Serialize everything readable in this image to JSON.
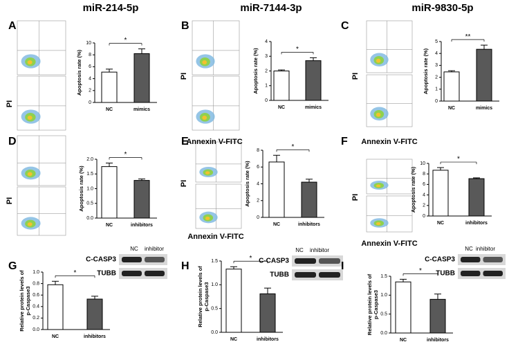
{
  "columns": [
    "miR-214-5p",
    "miR-7144-3p",
    "miR-9830-5p"
  ],
  "flow_x_label": "Annexin V-FITC",
  "flow_y_label": "PI",
  "blots": [
    {
      "lanes": [
        "NC",
        "inhibitor"
      ],
      "proteins": [
        "C-CASP3",
        "TUBB"
      ]
    },
    {
      "lanes": [
        "NC",
        "inhibitor"
      ],
      "proteins": [
        "C-CASP3",
        "TUBB"
      ]
    },
    {
      "lanes": [
        "NC",
        "inhibitor"
      ],
      "proteins": [
        "C-CASP3",
        "TUBB"
      ]
    }
  ],
  "chart_data": [
    {
      "type": "bar",
      "label": "A",
      "categories": [
        "NC",
        "mimics"
      ],
      "values": [
        5.1,
        8.2
      ],
      "errors": [
        0.5,
        0.8
      ],
      "colors": [
        "#ffffff",
        "#595959"
      ],
      "ylabel": [
        "Apoptosis rate (%)"
      ],
      "ylim": [
        0,
        10
      ],
      "yticks": [
        0,
        2,
        4,
        6,
        8,
        10
      ],
      "annotation": "*"
    },
    {
      "type": "bar",
      "label": "B",
      "categories": [
        "NC",
        "mimics"
      ],
      "values": [
        2.0,
        2.7
      ],
      "errors": [
        0.07,
        0.2
      ],
      "colors": [
        "#ffffff",
        "#595959"
      ],
      "ylabel": [
        "Apoptosis rate (%)"
      ],
      "ylim": [
        0,
        4
      ],
      "yticks": [
        0,
        1,
        2,
        3,
        4
      ],
      "annotation": "*"
    },
    {
      "type": "bar",
      "label": "C",
      "categories": [
        "NC",
        "mimics"
      ],
      "values": [
        2.45,
        4.35
      ],
      "errors": [
        0.1,
        0.35
      ],
      "colors": [
        "#ffffff",
        "#595959"
      ],
      "ylabel": [
        "Apoptosis rate (%)"
      ],
      "ylim": [
        0,
        5
      ],
      "yticks": [
        0,
        1,
        2,
        3,
        4,
        5
      ],
      "annotation": "**"
    },
    {
      "type": "bar",
      "label": "D",
      "categories": [
        "NC",
        "inhibitors"
      ],
      "values": [
        1.75,
        1.28
      ],
      "errors": [
        0.12,
        0.05
      ],
      "colors": [
        "#ffffff",
        "#595959"
      ],
      "ylabel": [
        "Apoptosis rate (%)"
      ],
      "ylim": [
        0,
        2
      ],
      "yticks": [
        {
          "value": 0,
          "label": "0.0"
        },
        0.5,
        {
          "value": 1,
          "label": "1.0"
        },
        1.5,
        {
          "value": 2,
          "label": "2.0"
        }
      ],
      "annotation": "*"
    },
    {
      "type": "bar",
      "label": "E",
      "categories": [
        "NC",
        "inhibitors"
      ],
      "values": [
        6.6,
        4.2
      ],
      "errors": [
        0.8,
        0.35
      ],
      "colors": [
        "#ffffff",
        "#595959"
      ],
      "ylabel": [
        "Apoptosis rate (%)"
      ],
      "ylim": [
        0,
        8
      ],
      "yticks": [
        0,
        2,
        4,
        6,
        8
      ],
      "annotation": "*"
    },
    {
      "type": "bar",
      "label": "F",
      "categories": [
        "NC",
        "inhibitors"
      ],
      "values": [
        8.7,
        7.1
      ],
      "errors": [
        0.5,
        0.15
      ],
      "colors": [
        "#ffffff",
        "#595959"
      ],
      "ylabel": [
        "Apoptosis rate (%)"
      ],
      "ylim": [
        0,
        10
      ],
      "yticks": [
        0,
        2,
        4,
        6,
        8,
        10
      ],
      "annotation": "*"
    },
    {
      "type": "bar",
      "label": "G",
      "categories": [
        "NC",
        "inhibitors"
      ],
      "values": [
        0.78,
        0.53
      ],
      "errors": [
        0.06,
        0.05
      ],
      "colors": [
        "#ffffff",
        "#595959"
      ],
      "ylabel": [
        "Relative protein levels of",
        "p-Caspase3"
      ],
      "ylim": [
        0,
        1
      ],
      "yticks": [
        {
          "value": 0,
          "label": "0.0"
        },
        0.2,
        0.4,
        0.6,
        0.8,
        {
          "value": 1,
          "label": "1.0"
        }
      ],
      "annotation": "*"
    },
    {
      "type": "bar",
      "label": "H",
      "categories": [
        "NC",
        "inhibitors"
      ],
      "values": [
        1.33,
        0.81
      ],
      "errors": [
        0.05,
        0.12
      ],
      "colors": [
        "#ffffff",
        "#595959"
      ],
      "ylabel": [
        "Relative protein levels of",
        "p-Caspase3"
      ],
      "ylim": [
        0,
        1.5
      ],
      "yticks": [
        {
          "value": 0,
          "label": "0.0"
        },
        0.5,
        {
          "value": 1,
          "label": "1.0"
        },
        1.5
      ],
      "annotation": "*"
    },
    {
      "type": "bar",
      "label": "I",
      "categories": [
        "NC",
        "inhibitors"
      ],
      "values": [
        1.35,
        0.89
      ],
      "errors": [
        0.07,
        0.14
      ],
      "colors": [
        "#ffffff",
        "#595959"
      ],
      "ylabel": [
        "Relative protein levels of",
        "p-Caspase3"
      ],
      "ylim": [
        0,
        1.5
      ],
      "yticks": [
        {
          "value": 0,
          "label": "0.0"
        },
        0.5,
        {
          "value": 1,
          "label": "1.0"
        },
        1.5
      ],
      "annotation": "*"
    }
  ]
}
